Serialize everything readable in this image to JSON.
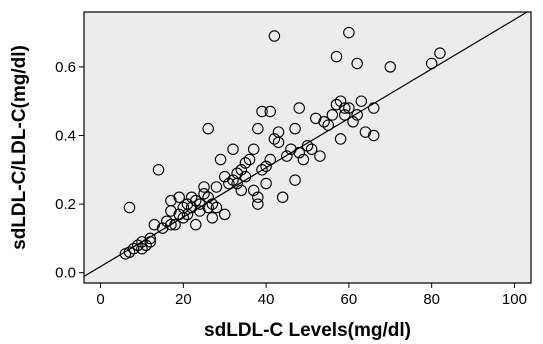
{
  "chart_data": {
    "type": "scatter",
    "title": "",
    "xlabel": "sdLDL-C Levels(mg/dl)",
    "ylabel": "sdLDL-C/LDL-C(mg/dl)",
    "xlim": [
      -4,
      104
    ],
    "ylim": [
      -0.03,
      0.76
    ],
    "x_ticks": [
      0,
      20,
      40,
      60,
      80,
      100
    ],
    "x_tick_labels": [
      "0",
      "20",
      "40",
      "60",
      "80",
      "100"
    ],
    "y_ticks": [
      0.0,
      0.2,
      0.4,
      0.6
    ],
    "y_tick_labels": [
      "0.0",
      "0.2",
      "0.4",
      "0.6"
    ],
    "grid": false,
    "legend": "none",
    "colors": {
      "plot_background": "#ececec",
      "marker_edge": "#000000",
      "fit_line": "#000000"
    },
    "fit_line": {
      "intercept": 0.018,
      "slope": 0.0072
    },
    "series": [
      {
        "points": [
          [
            6,
            0.055
          ],
          [
            7,
            0.06
          ],
          [
            7,
            0.19
          ],
          [
            8,
            0.07
          ],
          [
            9,
            0.08
          ],
          [
            10,
            0.07
          ],
          [
            10,
            0.09
          ],
          [
            11,
            0.08
          ],
          [
            12,
            0.09
          ],
          [
            12,
            0.1
          ],
          [
            13,
            0.14
          ],
          [
            14,
            0.3
          ],
          [
            15,
            0.13
          ],
          [
            16,
            0.15
          ],
          [
            17,
            0.14
          ],
          [
            17,
            0.21
          ],
          [
            17,
            0.18
          ],
          [
            18,
            0.14
          ],
          [
            19,
            0.17
          ],
          [
            19,
            0.22
          ],
          [
            20,
            0.16
          ],
          [
            20,
            0.19
          ],
          [
            21,
            0.2
          ],
          [
            21,
            0.17
          ],
          [
            22,
            0.19
          ],
          [
            22,
            0.22
          ],
          [
            23,
            0.14
          ],
          [
            23,
            0.21
          ],
          [
            24,
            0.18
          ],
          [
            24,
            0.2
          ],
          [
            25,
            0.25
          ],
          [
            25,
            0.23
          ],
          [
            26,
            0.42
          ],
          [
            26,
            0.22
          ],
          [
            26,
            0.19
          ],
          [
            27,
            0.2
          ],
          [
            27,
            0.16
          ],
          [
            28,
            0.25
          ],
          [
            28,
            0.19
          ],
          [
            29,
            0.33
          ],
          [
            30,
            0.28
          ],
          [
            30,
            0.17
          ],
          [
            31,
            0.26
          ],
          [
            32,
            0.36
          ],
          [
            32,
            0.27
          ],
          [
            33,
            0.29
          ],
          [
            33,
            0.26
          ],
          [
            34,
            0.24
          ],
          [
            34,
            0.3
          ],
          [
            35,
            0.28
          ],
          [
            35,
            0.32
          ],
          [
            36,
            0.33
          ],
          [
            37,
            0.36
          ],
          [
            37,
            0.24
          ],
          [
            38,
            0.2
          ],
          [
            38,
            0.22
          ],
          [
            38,
            0.42
          ],
          [
            39,
            0.47
          ],
          [
            39,
            0.3
          ],
          [
            40,
            0.31
          ],
          [
            40,
            0.26
          ],
          [
            41,
            0.47
          ],
          [
            41,
            0.33
          ],
          [
            42,
            0.39
          ],
          [
            42,
            0.69
          ],
          [
            43,
            0.41
          ],
          [
            43,
            0.38
          ],
          [
            44,
            0.22
          ],
          [
            45,
            0.34
          ],
          [
            46,
            0.36
          ],
          [
            47,
            0.42
          ],
          [
            47,
            0.27
          ],
          [
            48,
            0.48
          ],
          [
            48,
            0.35
          ],
          [
            49,
            0.33
          ],
          [
            50,
            0.37
          ],
          [
            51,
            0.36
          ],
          [
            52,
            0.45
          ],
          [
            53,
            0.34
          ],
          [
            54,
            0.44
          ],
          [
            55,
            0.43
          ],
          [
            56,
            0.46
          ],
          [
            57,
            0.63
          ],
          [
            57,
            0.49
          ],
          [
            58,
            0.5
          ],
          [
            58,
            0.39
          ],
          [
            59,
            0.48
          ],
          [
            59,
            0.46
          ],
          [
            60,
            0.7
          ],
          [
            60,
            0.48
          ],
          [
            61,
            0.44
          ],
          [
            62,
            0.61
          ],
          [
            62,
            0.46
          ],
          [
            63,
            0.5
          ],
          [
            64,
            0.41
          ],
          [
            66,
            0.4
          ],
          [
            66,
            0.48
          ],
          [
            70,
            0.6
          ],
          [
            80,
            0.61
          ],
          [
            82,
            0.64
          ]
        ]
      }
    ]
  }
}
